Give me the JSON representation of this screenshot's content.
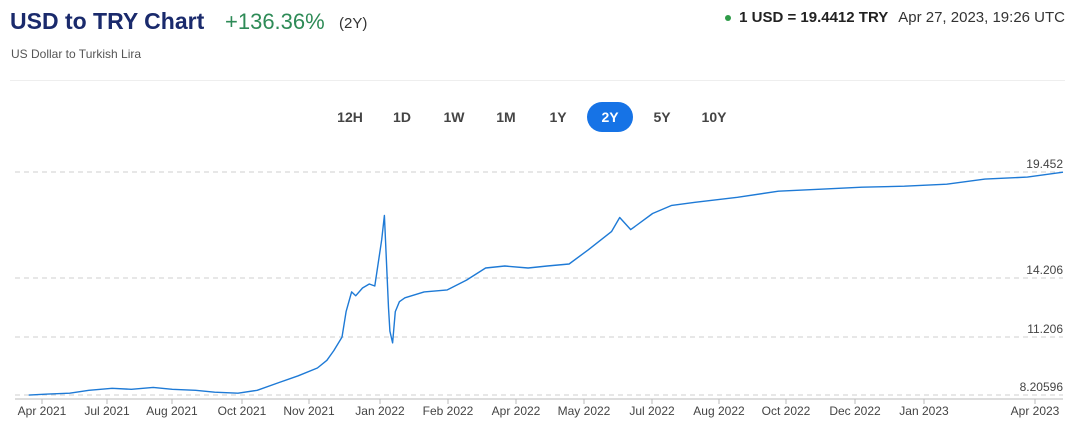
{
  "header": {
    "title": "USD to TRY Chart",
    "change": "+136.36%",
    "period": "(2Y)",
    "subtitle": "US Dollar to Turkish Lira",
    "quote": "1 USD = 19.4412 TRY",
    "timestamp": "Apr 27, 2023, 19:26 UTC"
  },
  "tabs": [
    "12H",
    "1D",
    "1W",
    "1M",
    "1Y",
    "2Y",
    "5Y",
    "10Y"
  ],
  "active_tab": "2Y",
  "colors": {
    "line": "#1e7ad6",
    "accent": "#1673e6",
    "positive": "#2e8b57",
    "live_dot": "#2e9b48"
  },
  "chart_data": {
    "type": "line",
    "title": "USD to TRY Chart",
    "xlabel": "",
    "ylabel": "",
    "y_labels": [
      "19.452",
      "14.206",
      "11.206",
      "8.20596"
    ],
    "y_label_values": [
      19.452,
      14.206,
      11.206,
      8.20596
    ],
    "x_tick_labels": [
      "Apr 2021",
      "Jul 2021",
      "Aug 2021",
      "Oct 2021",
      "Nov 2021",
      "Jan 2022",
      "Feb 2022",
      "Apr 2022",
      "May 2022",
      "Jul 2022",
      "Aug 2022",
      "Oct 2022",
      "Dec 2022",
      "Jan 2023",
      "Apr 2023"
    ],
    "grid": "horizontal dashed",
    "series": [
      {
        "x": [
          "2021-04-01",
          "2021-04-15",
          "2021-05-01",
          "2021-05-15",
          "2021-06-01",
          "2021-06-15",
          "2021-07-01",
          "2021-07-15",
          "2021-08-01",
          "2021-08-15",
          "2021-09-01",
          "2021-09-15",
          "2021-10-01",
          "2021-10-15",
          "2021-10-29",
          "2021-11-05",
          "2021-11-10",
          "2021-11-16",
          "2021-11-19",
          "2021-11-23",
          "2021-11-26",
          "2021-12-01",
          "2021-12-06",
          "2021-12-10",
          "2021-12-15",
          "2021-12-17",
          "2021-12-20",
          "2021-12-21",
          "2021-12-23",
          "2021-12-25",
          "2021-12-28",
          "2022-01-01",
          "2022-01-15",
          "2022-02-01",
          "2022-02-15",
          "2022-03-01",
          "2022-03-15",
          "2022-04-01",
          "2022-04-15",
          "2022-05-01",
          "2022-05-15",
          "2022-06-01",
          "2022-06-07",
          "2022-06-15",
          "2022-07-01",
          "2022-07-15",
          "2022-08-01",
          "2022-09-01",
          "2022-10-01",
          "2022-11-01",
          "2022-12-01",
          "2023-01-01",
          "2023-02-01",
          "2023-03-01",
          "2023-04-01",
          "2023-04-27"
        ],
        "y": [
          8.2,
          8.25,
          8.3,
          8.45,
          8.55,
          8.5,
          8.6,
          8.5,
          8.45,
          8.35,
          8.3,
          8.45,
          8.85,
          9.2,
          9.6,
          10.0,
          10.5,
          11.2,
          12.5,
          13.5,
          13.3,
          13.7,
          13.9,
          13.8,
          16.1,
          17.3,
          12.7,
          11.5,
          10.9,
          12.5,
          13.0,
          13.2,
          13.5,
          13.6,
          14.1,
          14.7,
          14.8,
          14.7,
          14.8,
          14.9,
          15.6,
          16.5,
          17.2,
          16.6,
          17.4,
          17.8,
          17.95,
          18.2,
          18.5,
          18.6,
          18.7,
          18.75,
          18.85,
          19.1,
          19.2,
          19.4412
        ]
      }
    ],
    "ylim": [
      8.0,
      19.452
    ]
  }
}
